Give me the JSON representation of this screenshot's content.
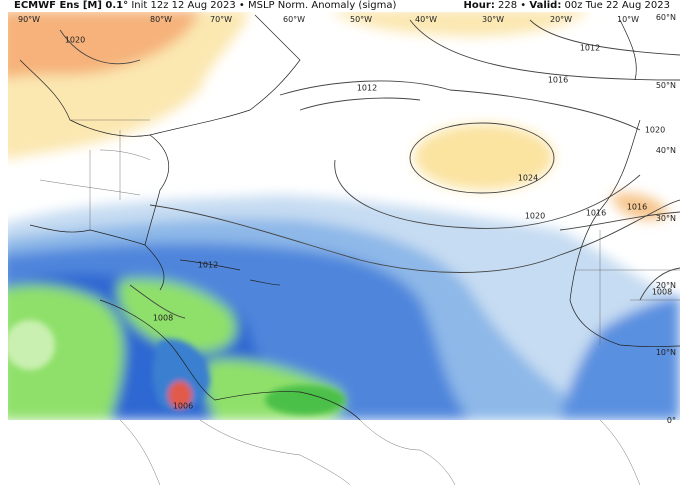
{
  "header": {
    "title": "ECMWF Ens [M] 0.1°",
    "init": "Init 12z 12 Aug 2023",
    "separator": "•",
    "product": "MSLP Norm. Anomaly (sigma)",
    "hour_label": "Hour:",
    "hour": "228",
    "valid_label": "Valid:",
    "valid": "00z Tue 22 Aug 2023"
  },
  "map": {
    "longitude_labels": [
      "90°W",
      "80°W",
      "70°W",
      "60°W",
      "50°W",
      "40°W",
      "30°W",
      "20°W",
      "10°W"
    ],
    "latitude_labels": [
      "60°N",
      "50°N",
      "40°N",
      "30°N",
      "20°N",
      "10°N",
      "0°"
    ],
    "contour_labels": [
      "1020",
      "1012",
      "1016",
      "1012",
      "1020",
      "1024",
      "1020",
      "1016",
      "1016",
      "1012",
      "1008",
      "1008",
      "1006"
    ]
  }
}
